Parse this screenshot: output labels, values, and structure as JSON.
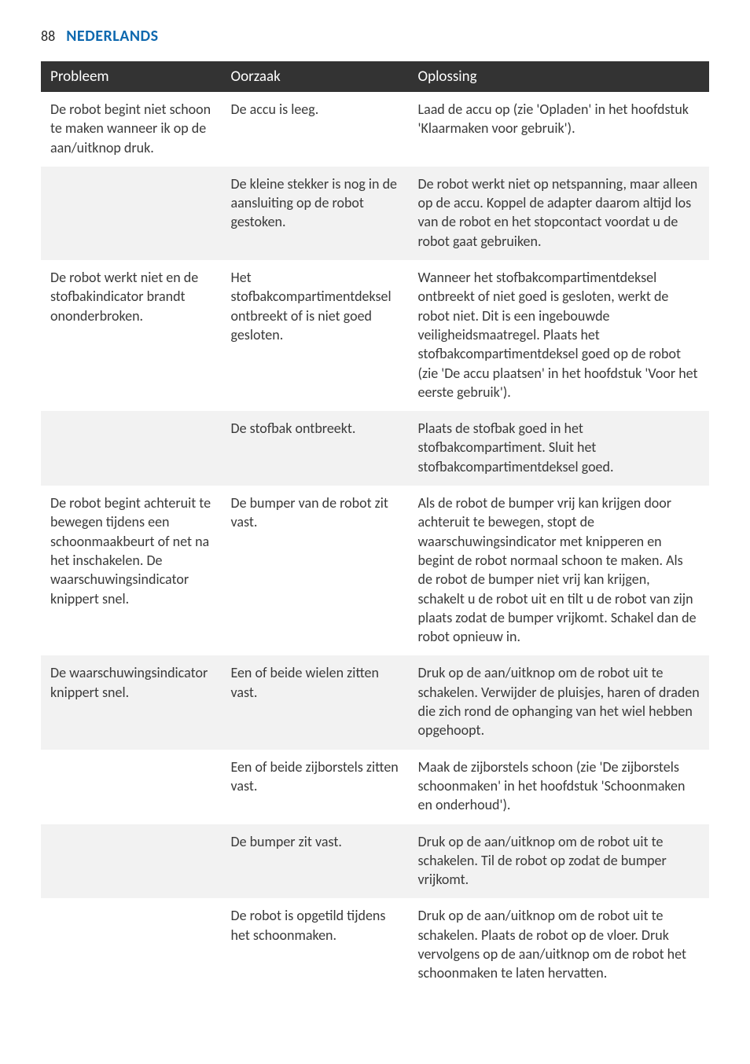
{
  "page_number": "88",
  "language_title": "NEDERLANDS",
  "colors": {
    "heading_blue": "#0f69af",
    "header_bg": "#333333",
    "header_text": "#ffffff",
    "body_text": "#3a3a3a",
    "row_shade": "#f2f2f2",
    "row_plain": "#ffffff"
  },
  "typography": {
    "body_fontsize_pt": 14,
    "heading_fontsize_pt": 15
  },
  "table": {
    "headers": {
      "problem": "Probleem",
      "cause": "Oorzaak",
      "solution": "Oplossing"
    },
    "column_widths_percent": [
      27,
      28,
      45
    ],
    "rows": [
      {
        "shade": false,
        "problem": "De robot begint niet schoon te maken wanneer ik op de aan/uitknop druk.",
        "cause": "De accu is leeg.",
        "solution": "Laad de accu op (zie 'Opladen' in het hoofdstuk 'Klaarmaken voor gebruik')."
      },
      {
        "shade": true,
        "problem": "",
        "cause": "De kleine stekker is nog in de aansluiting op de robot gestoken.",
        "solution": "De robot werkt niet op netspanning, maar alleen op de accu. Koppel de adapter daarom altijd los van de robot en het stopcontact voordat u de robot gaat gebruiken."
      },
      {
        "shade": false,
        "problem": "De robot werkt niet en de stofbakindicator brandt ononderbroken.",
        "cause": "Het stofbakcompartimentdeksel ontbreekt of is niet goed gesloten.",
        "solution": "Wanneer het stofbakcompartimentdeksel ontbreekt of niet goed is gesloten, werkt de robot niet. Dit is een ingebouwde veiligheidsmaatregel. Plaats het stofbakcompartimentdeksel goed op de robot (zie 'De accu plaatsen' in het hoofdstuk 'Voor het eerste gebruik')."
      },
      {
        "shade": true,
        "problem": "",
        "cause": "De stofbak ontbreekt.",
        "solution": "Plaats de stofbak goed in het stofbakcompartiment. Sluit het stofbakcompartimentdeksel goed."
      },
      {
        "shade": false,
        "problem": "De robot begint achteruit te bewegen tijdens een schoonmaakbeurt of net na het inschakelen. De waarschuwingsindicator knippert snel.",
        "cause": "De bumper van de robot zit vast.",
        "solution": "Als de robot de bumper vrij kan krijgen door achteruit te bewegen, stopt de waarschuwingsindicator met knipperen en begint de robot normaal schoon te maken. Als de robot de bumper niet vrij kan krijgen, schakelt u de robot uit en tilt u de robot van zijn plaats zodat de bumper vrijkomt. Schakel dan de robot opnieuw in."
      },
      {
        "shade": true,
        "problem": "De waarschuwingsindicator knippert snel.",
        "cause": "Een of beide wielen zitten vast.",
        "solution": "Druk op de aan/uitknop om de robot uit te schakelen. Verwijder de pluisjes, haren of draden die zich rond de ophanging van het wiel hebben opgehoopt."
      },
      {
        "shade": false,
        "problem": "",
        "cause": "Een of beide zijborstels zitten vast.",
        "solution": "Maak de zijborstels schoon (zie 'De zijborstels schoonmaken' in het hoofdstuk 'Schoonmaken en onderhoud')."
      },
      {
        "shade": true,
        "problem": "",
        "cause": "De bumper zit vast.",
        "solution": "Druk op de aan/uitknop om de robot uit te schakelen. Til de robot op zodat de bumper vrijkomt."
      },
      {
        "shade": false,
        "problem": "",
        "cause": "De robot is opgetild tijdens het schoonmaken.",
        "solution": "Druk op de aan/uitknop om de robot uit te schakelen. Plaats de robot op de vloer. Druk vervolgens op de aan/uitknop om de robot het schoonmaken te laten hervatten."
      }
    ]
  }
}
